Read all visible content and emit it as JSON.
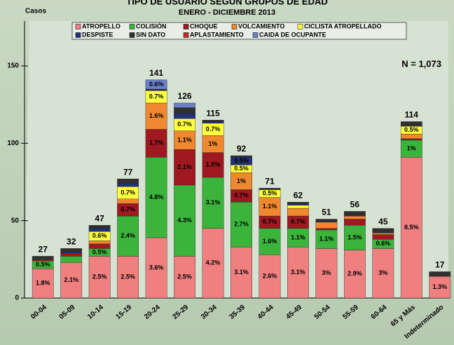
{
  "chart_data": {
    "type": "stacked_bar",
    "title": "TIPO DE USUARIO SEGUN GRUPOS DE EDAD",
    "subtitle": "ENERO - DICIEMBRE 2013",
    "y_label": "Casos",
    "annotation": "N = 1,073",
    "categories": [
      "00-04",
      "05-09",
      "10-14",
      "15-19",
      "20-24",
      "25-29",
      "30-34",
      "35-39",
      "40-44",
      "45-49",
      "50-54",
      "55-59",
      "60-64",
      "65 y Más",
      "Indeterminado"
    ],
    "totals": [
      27,
      32,
      47,
      77,
      141,
      126,
      115,
      92,
      71,
      62,
      51,
      56,
      45,
      114,
      17
    ],
    "series": [
      {
        "name": "ATROPELLO",
        "color": "#f08080",
        "values": [
          19,
          23,
          27,
          27,
          39,
          27,
          45,
          33,
          28,
          33,
          32,
          31,
          32,
          91,
          14
        ],
        "value_labels": [
          "1.8%",
          "2.1%",
          "2.5%",
          "2.5%",
          "3.6%",
          "2.5%",
          "4.2%",
          "3.1%",
          "2.6%",
          "3.1%",
          "3%",
          "2.9%",
          "3%",
          "8.5%",
          "1.3%"
        ]
      },
      {
        "name": "COLISIÓN",
        "color": "#3cb43c",
        "values": [
          5,
          4,
          5,
          26,
          52,
          46,
          33,
          29,
          17,
          12,
          12,
          16,
          6,
          11,
          0
        ],
        "value_labels": [
          "0.5%",
          null,
          "0.5%",
          "2.4%",
          "4.8%",
          "4.3%",
          "3.1%",
          "2.7%",
          "1.6%",
          "1.1%",
          "1.1%",
          "1.5%",
          "0.6%",
          "1%",
          null
        ]
      },
      {
        "name": "CHOQUE",
        "color": "#a01820",
        "values": [
          1,
          2,
          3,
          8,
          18,
          23,
          16,
          8,
          8,
          8,
          1,
          4,
          3,
          1,
          0
        ],
        "value_labels": [
          null,
          null,
          null,
          "0.7%",
          "1.7%",
          "2.1%",
          "1.5%",
          "0.7%",
          "0.7%",
          "0.7%",
          null,
          null,
          null,
          null,
          null
        ]
      },
      {
        "name": "VOLCAMIENTO",
        "color": "#f08830",
        "values": [
          0,
          0,
          2,
          3,
          17,
          12,
          11,
          11,
          12,
          5,
          4,
          2,
          1,
          3,
          0
        ],
        "value_labels": [
          null,
          null,
          null,
          null,
          "1.6%",
          "1.1%",
          "1%",
          "1%",
          "1.1%",
          null,
          null,
          null,
          null,
          null,
          null
        ]
      },
      {
        "name": "CICLISTA ATROPELLADO",
        "color": "#ffff40",
        "values": [
          0,
          0,
          6,
          8,
          8,
          8,
          8,
          5,
          5,
          2,
          0,
          0,
          0,
          5,
          0
        ],
        "value_labels": [
          null,
          null,
          "0.6%",
          "0.7%",
          "0.7%",
          "0.7%",
          "0.7%",
          "0.5%",
          "0.5%",
          null,
          null,
          null,
          null,
          "0.5%",
          null
        ]
      },
      {
        "name": "DESPISTE",
        "color": "#203080",
        "values": [
          0,
          1,
          2,
          2,
          0,
          3,
          1,
          5,
          0,
          1,
          0,
          0,
          0,
          0,
          0
        ],
        "value_labels": [
          null,
          null,
          null,
          null,
          null,
          null,
          null,
          "0.5%",
          null,
          null,
          null,
          null,
          null,
          null,
          null
        ]
      },
      {
        "name": "SIN DATO",
        "color": "#303030",
        "values": [
          2,
          2,
          2,
          3,
          1,
          4,
          1,
          1,
          1,
          1,
          2,
          3,
          3,
          3,
          3
        ],
        "value_labels": [
          null,
          null,
          null,
          null,
          null,
          null,
          null,
          null,
          null,
          null,
          null,
          null,
          null,
          null,
          null
        ]
      },
      {
        "name": "APLASTAMIENTO",
        "color": "#c82828",
        "values": [
          0,
          0,
          0,
          0,
          0,
          0,
          0,
          0,
          0,
          0,
          0,
          0,
          0,
          0,
          0
        ],
        "value_labels": [
          null,
          null,
          null,
          null,
          null,
          null,
          null,
          null,
          null,
          null,
          null,
          null,
          null,
          null,
          null
        ]
      },
      {
        "name": "CAIDA DE OCUPANTE",
        "color": "#6a80c8",
        "values": [
          0,
          0,
          0,
          0,
          6,
          3,
          0,
          0,
          0,
          0,
          0,
          0,
          0,
          0,
          0
        ],
        "value_labels": [
          null,
          null,
          null,
          null,
          "0.6%",
          null,
          null,
          null,
          null,
          null,
          null,
          null,
          null,
          null,
          null
        ]
      }
    ],
    "ylim": [
      0,
      150
    ],
    "yticks": [
      0,
      50,
      100,
      150
    ],
    "legend": "top"
  }
}
